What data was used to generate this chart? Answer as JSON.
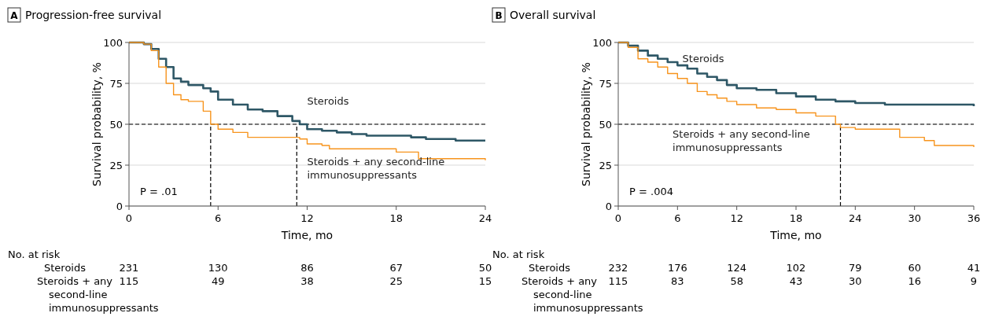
{
  "chart_data": [
    {
      "type": "step",
      "title": "A Progression-free survival",
      "xlabel": "Time, mo",
      "ylabel": "Survival probability, %",
      "xlim": [
        0,
        24
      ],
      "xticks": [
        0,
        6,
        12,
        18,
        24
      ],
      "ylim": [
        0,
        100
      ],
      "yticks": [
        0,
        25,
        50,
        75,
        100
      ],
      "grid": "y",
      "legend": false,
      "series": [
        {
          "name": "Steroids",
          "color": "#2e5766",
          "x": [
            0,
            1,
            1.5,
            2,
            2.5,
            3,
            3.5,
            4,
            5,
            5.5,
            6,
            7,
            8,
            9,
            10,
            11,
            11.5,
            12,
            13,
            14,
            15,
            16,
            19,
            20,
            22,
            24
          ],
          "values": [
            100,
            99,
            96,
            90,
            85,
            78,
            76,
            74,
            72,
            70,
            65,
            62,
            59,
            58,
            55,
            52,
            50,
            47,
            46,
            45,
            44,
            43,
            42,
            41,
            40,
            40
          ]
        },
        {
          "name": "Steroids + any second-line immunosuppressants",
          "color": "#f7941d",
          "x": [
            0,
            1,
            1.5,
            2,
            2.5,
            3,
            3.5,
            4,
            5,
            5.5,
            6,
            7,
            8,
            11.5,
            12,
            13,
            13.5,
            18,
            19.5,
            24
          ],
          "values": [
            100,
            99,
            95,
            85,
            75,
            68,
            65,
            64,
            58,
            50,
            47,
            45,
            42,
            41,
            38,
            37,
            35,
            33,
            29,
            28
          ]
        }
      ],
      "ref_lines": [
        {
          "axis": "y",
          "value": 50,
          "color": "#000000",
          "line_style": "dashed"
        },
        {
          "axis": "x",
          "value": 5.5,
          "color": "#000000",
          "line_style": "dashed"
        },
        {
          "axis": "x",
          "value": 11.3,
          "color": "#000000",
          "line_style": "dashed"
        }
      ],
      "annotations": [
        "P = .01",
        "No. at risk",
        "Steroids",
        "231",
        "130",
        "86",
        "67",
        "50",
        "Steroids + any second-line immunosuppressants",
        "115",
        "49",
        "38",
        "25",
        "15"
      ]
    },
    {
      "type": "step",
      "title": "B Overall survival",
      "xlabel": "Time, mo",
      "ylabel": "Survival probability, %",
      "xlim": [
        0,
        36
      ],
      "xticks": [
        0,
        6,
        12,
        18,
        24,
        30,
        36
      ],
      "ylim": [
        0,
        100
      ],
      "yticks": [
        0,
        25,
        50,
        75,
        100
      ],
      "grid": "y",
      "legend": false,
      "series": [
        {
          "name": "Steroids",
          "color": "#2e5766",
          "x": [
            0,
            1,
            2,
            3,
            4,
            5,
            6,
            7,
            8,
            9,
            10,
            11,
            12,
            14,
            16,
            18,
            20,
            22,
            24,
            27,
            36
          ],
          "values": [
            100,
            98,
            95,
            92,
            90,
            88,
            86,
            84,
            81,
            79,
            77,
            74,
            72,
            71,
            69,
            67,
            65,
            64,
            63,
            62,
            61
          ]
        },
        {
          "name": "Steroids + any second-line immunosuppressants",
          "color": "#f7941d",
          "x": [
            0,
            1,
            2,
            3,
            4,
            5,
            6,
            7,
            8,
            9,
            10,
            11,
            12,
            14,
            16,
            18,
            20,
            22,
            22.5,
            24,
            28.5,
            31,
            32,
            36
          ],
          "values": [
            100,
            97,
            90,
            88,
            85,
            81,
            78,
            75,
            70,
            68,
            66,
            64,
            62,
            60,
            59,
            57,
            55,
            50,
            48,
            47,
            42,
            40,
            37,
            36
          ]
        }
      ],
      "ref_lines": [
        {
          "axis": "y",
          "value": 50,
          "color": "#000000",
          "line_style": "dashed"
        },
        {
          "axis": "x",
          "value": 22.5,
          "color": "#000000",
          "line_style": "dashed"
        }
      ],
      "annotations": [
        "P = .004",
        "No. at risk",
        "Steroids",
        "232",
        "176",
        "124",
        "102",
        "79",
        "60",
        "41",
        "Steroids + any second-line immunosuppressants",
        "115",
        "83",
        "58",
        "43",
        "30",
        "16",
        "9"
      ]
    }
  ]
}
